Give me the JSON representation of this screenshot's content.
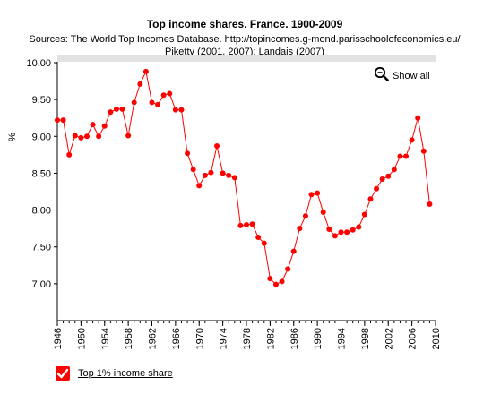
{
  "chart_data": {
    "type": "line",
    "title": "Top income shares. France. 1900-2009",
    "subtitle_lines": [
      "Sources: The World Top Incomes Database. http://topincomes.g-mond.parisschoolofeconomics.eu/",
      "Piketty (2001, 2007); Landais (2007)"
    ],
    "ylabel": "%",
    "xlabel": "",
    "xlim": [
      1946,
      2010
    ],
    "ylim": [
      6.5,
      10.0
    ],
    "x_ticks": [
      "1946",
      "1950",
      "1954",
      "1958",
      "1962",
      "1966",
      "1970",
      "1974",
      "1978",
      "1982",
      "1986",
      "1990",
      "1994",
      "1998",
      "2002",
      "2006",
      "2010"
    ],
    "y_ticks": [
      "7.00",
      "7.50",
      "8.00",
      "8.50",
      "9.00",
      "9.50",
      "10.00"
    ],
    "grid": false,
    "legend_position": "bottom-left",
    "series": [
      {
        "name": "Top 1% income share",
        "color": "#ff0000",
        "x": [
          1946,
          1947,
          1948,
          1949,
          1950,
          1951,
          1952,
          1953,
          1954,
          1955,
          1956,
          1957,
          1958,
          1959,
          1960,
          1961,
          1962,
          1963,
          1964,
          1965,
          1966,
          1967,
          1968,
          1969,
          1970,
          1971,
          1972,
          1973,
          1974,
          1975,
          1976,
          1977,
          1978,
          1979,
          1980,
          1981,
          1982,
          1983,
          1984,
          1985,
          1986,
          1987,
          1988,
          1989,
          1990,
          1991,
          1992,
          1993,
          1994,
          1995,
          1996,
          1997,
          1998,
          1999,
          2000,
          2001,
          2002,
          2003,
          2004,
          2005,
          2006,
          2007,
          2008,
          2009
        ],
        "y": [
          9.22,
          9.22,
          8.75,
          9.01,
          8.98,
          9.0,
          9.16,
          9.0,
          9.14,
          9.33,
          9.37,
          9.37,
          9.01,
          9.46,
          9.71,
          9.88,
          9.46,
          9.43,
          9.56,
          9.58,
          9.36,
          9.36,
          8.77,
          8.55,
          8.33,
          8.47,
          8.51,
          8.87,
          8.5,
          8.47,
          8.44,
          7.79,
          7.8,
          7.81,
          7.63,
          7.55,
          7.07,
          6.99,
          7.03,
          7.2,
          7.44,
          7.75,
          7.92,
          8.21,
          8.23,
          7.97,
          7.74,
          7.65,
          7.7,
          7.7,
          7.73,
          7.77,
          7.94,
          8.15,
          8.29,
          8.42,
          8.46,
          8.55,
          8.73,
          8.73,
          8.95,
          9.25,
          8.8,
          8.08
        ]
      }
    ]
  },
  "controls": {
    "show_all_label": "Show all",
    "show_all_icon": "zoom-out-magnifier-icon",
    "legend_check_icon": "checkmark-icon"
  }
}
